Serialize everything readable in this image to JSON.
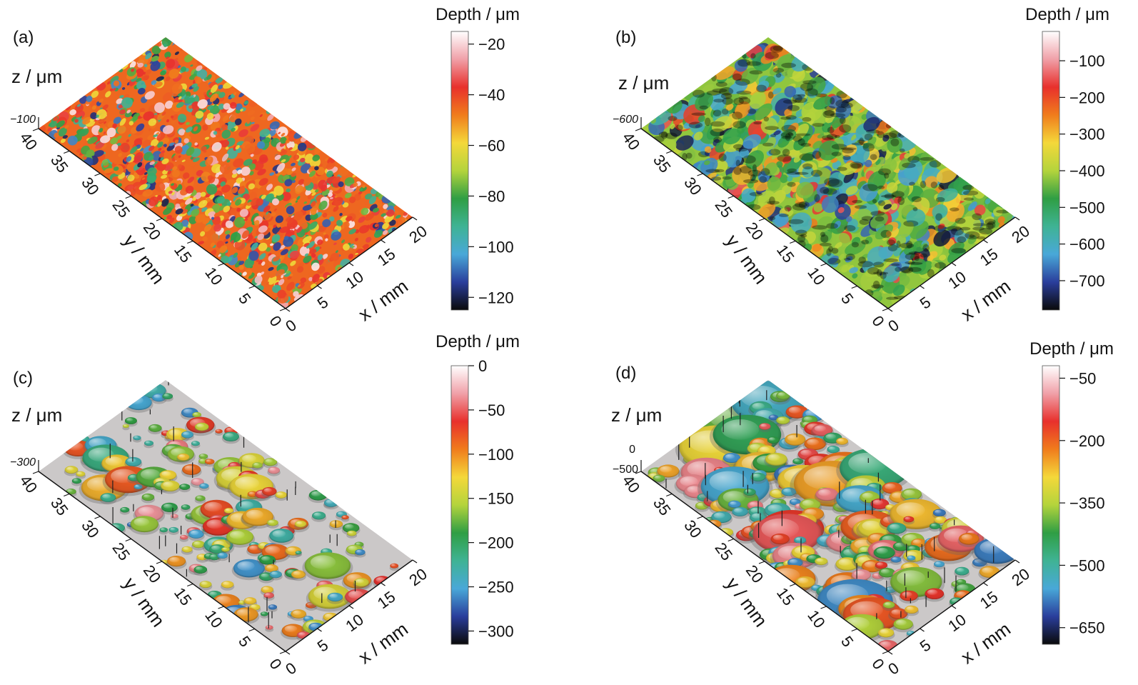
{
  "chart_data": [
    {
      "panel": "(a)",
      "type": "heatmap",
      "subtype": "3d-surface",
      "colorbar_title": "Depth / μm",
      "colorbar_ticks": [
        "−20",
        "−40",
        "−60",
        "−80",
        "−100",
        "−120"
      ],
      "colorbar_values": [
        -20,
        -40,
        -60,
        -80,
        -100,
        -120
      ],
      "z_label": "z / μm",
      "z_tick": "−100",
      "x_label": "x / mm",
      "x_ticks": [
        "0",
        "5",
        "10",
        "15",
        "20"
      ],
      "x_values": [
        0,
        5,
        10,
        15,
        20
      ],
      "y_label": "y / mm",
      "y_ticks": [
        "0",
        "5",
        "10",
        "15",
        "20",
        "25",
        "30",
        "35",
        "40"
      ],
      "y_values": [
        0,
        5,
        10,
        15,
        20,
        25,
        30,
        35,
        40
      ],
      "depth_range": [
        -125,
        -15
      ],
      "surface": "fine-rough"
    },
    {
      "panel": "(b)",
      "type": "heatmap",
      "subtype": "3d-surface",
      "colorbar_title": "Depth / μm",
      "colorbar_ticks": [
        "−100",
        "−200",
        "−300",
        "−400",
        "−500",
        "−600",
        "−700"
      ],
      "colorbar_values": [
        -100,
        -200,
        -300,
        -400,
        -500,
        -600,
        -700
      ],
      "z_label": "z / μm",
      "z_tick": "−600",
      "x_label": "x / mm",
      "x_ticks": [
        "0",
        "5",
        "10",
        "15",
        "20"
      ],
      "x_values": [
        0,
        5,
        10,
        15,
        20
      ],
      "y_label": "y / mm",
      "y_ticks": [
        "0",
        "5",
        "10",
        "15",
        "20",
        "25",
        "30",
        "35",
        "40"
      ],
      "y_values": [
        0,
        5,
        10,
        15,
        20,
        25,
        30,
        35,
        40
      ],
      "depth_range": [
        -780,
        -20
      ],
      "surface": "coarse-rough"
    },
    {
      "panel": "(c)",
      "type": "heatmap",
      "subtype": "3d-surface",
      "colorbar_title": "Depth / μm",
      "colorbar_ticks": [
        "0",
        "−50",
        "−100",
        "−150",
        "−200",
        "−250",
        "−300"
      ],
      "colorbar_values": [
        0,
        -50,
        -100,
        -150,
        -200,
        -250,
        -300
      ],
      "z_label": "z / μm",
      "z_tick": "−300",
      "x_label": "x / mm",
      "x_ticks": [
        "0",
        "5",
        "10",
        "15",
        "20"
      ],
      "x_values": [
        0,
        5,
        10,
        15,
        20
      ],
      "y_label": "y / mm",
      "y_ticks": [
        "0",
        "5",
        "10",
        "15",
        "20",
        "25",
        "30",
        "35",
        "40"
      ],
      "y_values": [
        0,
        5,
        10,
        15,
        20,
        25,
        30,
        35,
        40
      ],
      "depth_range": [
        -315,
        0
      ],
      "surface": "pitted"
    },
    {
      "panel": "(d)",
      "type": "heatmap",
      "subtype": "3d-surface",
      "colorbar_title": "Depth / μm",
      "colorbar_ticks": [
        "−50",
        "−200",
        "−350",
        "−500",
        "−650"
      ],
      "colorbar_values": [
        -50,
        -200,
        -350,
        -500,
        -650
      ],
      "z_label": "z / μm",
      "z_ticks": [
        "0",
        "−500"
      ],
      "x_label": "x / mm",
      "x_ticks": [
        "0",
        "5",
        "10",
        "15",
        "20"
      ],
      "x_values": [
        0,
        5,
        10,
        15,
        20
      ],
      "y_label": "y / mm",
      "y_ticks": [
        "0",
        "5",
        "10",
        "15",
        "20",
        "25",
        "30",
        "35",
        "40"
      ],
      "y_values": [
        0,
        5,
        10,
        15,
        20,
        25,
        30,
        35,
        40
      ],
      "depth_range": [
        -690,
        -20
      ],
      "surface": "large-pitted"
    }
  ],
  "colors": {
    "colormap": [
      "#ffffff",
      "#f0a0a8",
      "#e8302c",
      "#f07c1c",
      "#f4d83a",
      "#b4d43c",
      "#2f9e44",
      "#3fb394",
      "#49a8d8",
      "#2a3e9c",
      "#0a0a0a"
    ],
    "flat_surface": "#cbc8c8",
    "axis": "#111111"
  }
}
